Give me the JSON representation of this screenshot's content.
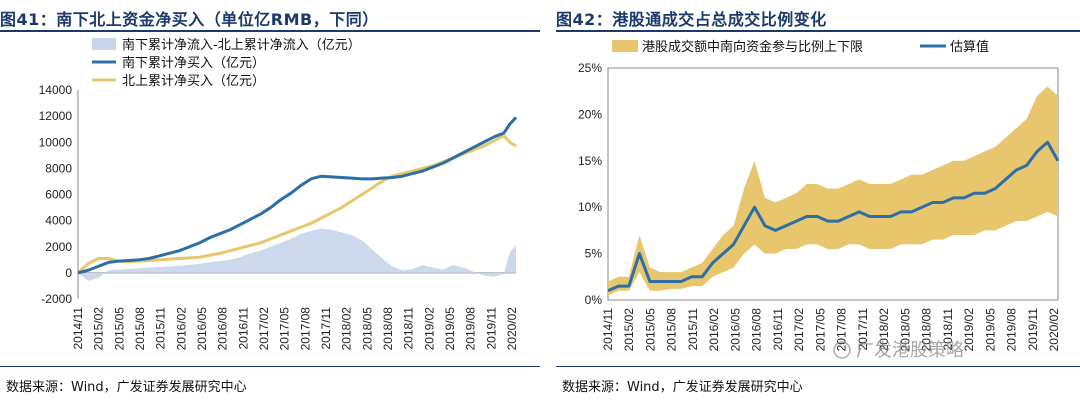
{
  "left": {
    "figure_number": "图41：",
    "title": "南下北上资金净买入（单位亿RMB，下同）",
    "source": "数据来源：Wind，广发证券发展研究中心"
  },
  "right": {
    "figure_number": "图42：",
    "title": "港股通成交占总成交比例变化",
    "source": "数据来源：Wind，广发证券发展研究中心",
    "watermark": "广发港股策略"
  },
  "colors": {
    "southbound": "#2c6ea6",
    "northbound": "#e8c66e",
    "diff_area": "#c9d6ea",
    "band": "#e8c66e",
    "estimate": "#2c6ea6",
    "title": "#1b3a6b"
  },
  "chart_data": [
    {
      "type": "line",
      "title": "南下北上资金净买入（单位亿RMB，下同）",
      "x_tick_labels": [
        "2014/11",
        "2015/02",
        "2015/05",
        "2015/08",
        "2015/11",
        "2016/02",
        "2016/05",
        "2016/08",
        "2016/11",
        "2017/02",
        "2017/05",
        "2017/08",
        "2017/11",
        "2018/02",
        "2018/05",
        "2018/08",
        "2018/11",
        "2019/02",
        "2019/05",
        "2019/08",
        "2019/11",
        "2020/02"
      ],
      "ylim": [
        -2000,
        14000
      ],
      "y_ticks": [
        -2000,
        0,
        2000,
        4000,
        6000,
        8000,
        10000,
        12000,
        14000
      ],
      "legend": [
        "南下累计净流入-北上累计净流入（亿元）",
        "南下累计净买入（亿元）",
        "北上累计净买入（亿元）"
      ],
      "series": [
        {
          "name": "南下累计净流入-北上累计净流入（亿元）",
          "type": "area",
          "x": [
            0,
            0.5,
            1,
            1.5,
            2,
            2.5,
            3,
            3.5,
            4,
            4.5,
            5,
            5.5,
            6,
            6.5,
            7,
            7.5,
            8,
            8.5,
            9,
            9.5,
            10,
            10.5,
            11,
            11.5,
            12,
            12.5,
            13,
            13.5,
            14,
            14.5,
            15,
            15.5,
            16,
            16.5,
            17,
            17.5,
            18,
            18.5,
            19,
            19.5,
            20,
            20.5,
            21,
            21.3,
            21.6
          ],
          "values": [
            0,
            -600,
            -400,
            200,
            250,
            300,
            350,
            400,
            450,
            500,
            550,
            600,
            700,
            800,
            900,
            1000,
            1200,
            1500,
            1700,
            2000,
            2300,
            2600,
            3000,
            3200,
            3400,
            3300,
            3100,
            2900,
            2500,
            1800,
            1100,
            500,
            200,
            300,
            600,
            400,
            250,
            600,
            400,
            100,
            -200,
            -300,
            -100,
            1600,
            2100
          ]
        },
        {
          "name": "南下累计净买入（亿元）",
          "x": [
            0,
            0.5,
            1,
            1.5,
            2,
            2.5,
            3,
            3.5,
            4,
            4.5,
            5,
            5.5,
            6,
            6.5,
            7,
            7.5,
            8,
            8.5,
            9,
            9.5,
            10,
            10.5,
            11,
            11.5,
            12,
            12.5,
            13,
            13.5,
            14,
            14.5,
            15,
            15.5,
            16,
            16.5,
            17,
            17.5,
            18,
            18.5,
            19,
            19.5,
            20,
            20.5,
            21,
            21.3,
            21.6
          ],
          "values": [
            0,
            200,
            500,
            800,
            900,
            950,
            1000,
            1100,
            1300,
            1500,
            1700,
            2000,
            2300,
            2700,
            3000,
            3300,
            3700,
            4100,
            4500,
            5000,
            5600,
            6100,
            6700,
            7200,
            7400,
            7350,
            7300,
            7250,
            7200,
            7200,
            7250,
            7300,
            7400,
            7600,
            7800,
            8100,
            8400,
            8800,
            9200,
            9600,
            10000,
            10400,
            10700,
            11400,
            11900
          ]
        },
        {
          "name": "北上累计净买入（亿元）",
          "x": [
            0,
            0.5,
            1,
            1.5,
            2,
            2.5,
            3,
            3.5,
            4,
            4.5,
            5,
            5.5,
            6,
            6.5,
            7,
            7.5,
            8,
            8.5,
            9,
            9.5,
            10,
            10.5,
            11,
            11.5,
            12,
            12.5,
            13,
            13.5,
            14,
            14.5,
            15,
            15.5,
            16,
            16.5,
            17,
            17.5,
            18,
            18.5,
            19,
            19.5,
            20,
            20.5,
            21,
            21.3,
            21.6
          ],
          "values": [
            0,
            700,
            1100,
            1100,
            900,
            850,
            900,
            950,
            1000,
            1050,
            1100,
            1150,
            1200,
            1350,
            1500,
            1700,
            1900,
            2100,
            2300,
            2600,
            2900,
            3200,
            3500,
            3800,
            4200,
            4600,
            5000,
            5500,
            6000,
            6500,
            7000,
            7400,
            7600,
            7800,
            8000,
            8200,
            8500,
            8800,
            9100,
            9400,
            9700,
            10100,
            10500,
            10000,
            9700
          ]
        }
      ]
    },
    {
      "type": "area",
      "title": "港股通成交占总成交比例变化",
      "x_tick_labels": [
        "2014/11",
        "2015/02",
        "2015/05",
        "2015/08",
        "2015/11",
        "2016/02",
        "2016/05",
        "2016/08",
        "2016/11",
        "2017/02",
        "2017/05",
        "2017/08",
        "2017/11",
        "2018/02",
        "2018/05",
        "2018/08",
        "2018/11",
        "2019/02",
        "2019/05",
        "2019/08",
        "2019/11",
        "2020/02"
      ],
      "ylim": [
        0,
        25
      ],
      "y_ticks": [
        "0%",
        "5%",
        "10%",
        "15%",
        "20%",
        "25%"
      ],
      "y_tick_values": [
        0,
        5,
        10,
        15,
        20,
        25
      ],
      "legend": [
        "港股成交额中南向资金参与比例上下限",
        "估算值"
      ],
      "series": [
        {
          "name": "港股成交额中南向资金参与比例上下限",
          "type": "band",
          "x": [
            0,
            0.5,
            1,
            1.5,
            2,
            2.5,
            3,
            3.5,
            4,
            4.5,
            5,
            5.5,
            6,
            6.5,
            7,
            7.5,
            8,
            8.5,
            9,
            9.5,
            10,
            10.5,
            11,
            11.5,
            12,
            12.5,
            13,
            13.5,
            14,
            14.5,
            15,
            15.5,
            16,
            16.5,
            17,
            17.5,
            18,
            18.5,
            19,
            19.5,
            20,
            20.5,
            21,
            21.5
          ],
          "upper": [
            2,
            2.5,
            2.5,
            7,
            3.5,
            3,
            3,
            3,
            3.5,
            4,
            5.5,
            7,
            8,
            12,
            15,
            11,
            10.5,
            11,
            11.5,
            12.5,
            12.5,
            12,
            12,
            12.5,
            13,
            12.5,
            12.5,
            12.5,
            13,
            13.5,
            13.5,
            14,
            14.5,
            15,
            15,
            15.5,
            16,
            16.5,
            17.5,
            18.5,
            19.5,
            22,
            23,
            22
          ],
          "lower": [
            0.5,
            1,
            1,
            3,
            1,
            1,
            1.2,
            1.2,
            1.5,
            1.5,
            2.5,
            3,
            3.5,
            5,
            6,
            5,
            5,
            5.5,
            5.5,
            6,
            6,
            5.5,
            5.5,
            6,
            6,
            5.5,
            5.5,
            5.5,
            6,
            6,
            6,
            6.5,
            6.5,
            7,
            7,
            7,
            7.5,
            7.5,
            8,
            8.5,
            8.5,
            9,
            9.5,
            9
          ]
        },
        {
          "name": "估算值",
          "x": [
            0,
            0.5,
            1,
            1.5,
            2,
            2.5,
            3,
            3.5,
            4,
            4.5,
            5,
            5.5,
            6,
            6.5,
            7,
            7.5,
            8,
            8.5,
            9,
            9.5,
            10,
            10.5,
            11,
            11.5,
            12,
            12.5,
            13,
            13.5,
            14,
            14.5,
            15,
            15.5,
            16,
            16.5,
            17,
            17.5,
            18,
            18.5,
            19,
            19.5,
            20,
            20.5,
            21,
            21.5
          ],
          "values": [
            1,
            1.5,
            1.5,
            5,
            2,
            2,
            2,
            2,
            2.5,
            2.5,
            4,
            5,
            6,
            8,
            10,
            8,
            7.5,
            8,
            8.5,
            9,
            9,
            8.5,
            8.5,
            9,
            9.5,
            9,
            9,
            9,
            9.5,
            9.5,
            10,
            10.5,
            10.5,
            11,
            11,
            11.5,
            11.5,
            12,
            13,
            14,
            14.5,
            16,
            17,
            15
          ]
        }
      ]
    }
  ]
}
